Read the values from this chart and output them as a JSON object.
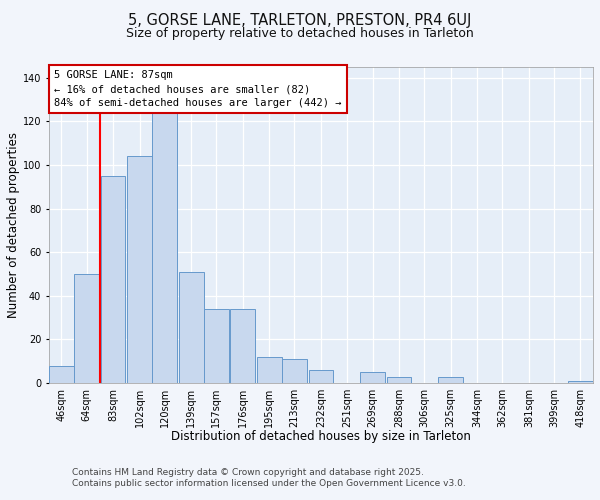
{
  "title": "5, GORSE LANE, TARLETON, PRESTON, PR4 6UJ",
  "subtitle": "Size of property relative to detached houses in Tarleton",
  "xlabel": "Distribution of detached houses by size in Tarleton",
  "ylabel": "Number of detached properties",
  "bin_starts": [
    46,
    64,
    83,
    102,
    120,
    139,
    157,
    176,
    195,
    213,
    232,
    251,
    269,
    288,
    306,
    325,
    344,
    362,
    381,
    399,
    418
  ],
  "bar_heights": [
    8,
    50,
    95,
    104,
    134,
    51,
    34,
    34,
    12,
    11,
    6,
    0,
    5,
    3,
    0,
    3,
    0,
    0,
    0,
    0,
    1
  ],
  "bar_color": "#c8d8ee",
  "bar_edge_color": "#6699cc",
  "red_line_x": 83,
  "annotation_title": "5 GORSE LANE: 87sqm",
  "annotation_line1": "← 16% of detached houses are smaller (82)",
  "annotation_line2": "84% of semi-detached houses are larger (442) →",
  "ylim_max": 145,
  "yticks": [
    0,
    20,
    40,
    60,
    80,
    100,
    120,
    140
  ],
  "tick_labels": [
    "46sqm",
    "64sqm",
    "83sqm",
    "102sqm",
    "120sqm",
    "139sqm",
    "157sqm",
    "176sqm",
    "195sqm",
    "213sqm",
    "232sqm",
    "251sqm",
    "269sqm",
    "288sqm",
    "306sqm",
    "325sqm",
    "344sqm",
    "362sqm",
    "381sqm",
    "399sqm",
    "418sqm"
  ],
  "footer1": "Contains HM Land Registry data © Crown copyright and database right 2025.",
  "footer2": "Contains public sector information licensed under the Open Government Licence v3.0.",
  "bg_color": "#f2f5fb",
  "plot_bg_color": "#e6eef8",
  "grid_color": "#ffffff",
  "title_fontsize": 10.5,
  "subtitle_fontsize": 9,
  "axis_label_fontsize": 8.5,
  "tick_fontsize": 7,
  "footer_fontsize": 6.5,
  "ann_fontsize": 7.5
}
